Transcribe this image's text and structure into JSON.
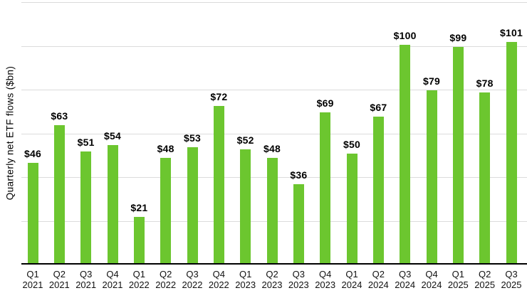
{
  "chart_data": {
    "type": "bar",
    "ylabel": "Quarterly net ETF flows ($bn)",
    "categories": [
      "Q1 2021",
      "Q2 2021",
      "Q3 2021",
      "Q4 2021",
      "Q1 2022",
      "Q2 2022",
      "Q3 2022",
      "Q4 2022",
      "Q1 2023",
      "Q2 2023",
      "Q3 2023",
      "Q4 2023",
      "Q1 2024",
      "Q2 2024",
      "Q3 2024",
      "Q4 2024",
      "Q1 2025",
      "Q2 2025",
      "Q3 2025"
    ],
    "values": [
      46,
      63,
      51,
      54,
      21,
      48,
      53,
      72,
      52,
      48,
      36,
      69,
      50,
      67,
      100,
      79,
      99,
      78,
      101
    ],
    "value_prefix": "$",
    "data_labels": [
      "$46",
      "$63",
      "$51",
      "$54",
      "$21",
      "$48",
      "$53",
      "$72",
      "$52",
      "$48",
      "$36",
      "$69",
      "$50",
      "$67",
      "$100",
      "$79",
      "$99",
      "$78",
      "$101"
    ],
    "ylim": [
      0,
      120
    ],
    "grid_step": 20,
    "grid": true,
    "legend_position": "none",
    "colors": {
      "bar": "#6CC62F",
      "gridline": "#DBDBDB",
      "axis": "#000000",
      "value_label": "#000000",
      "tick_label": "#111111",
      "background": "#FFFFFF"
    }
  }
}
